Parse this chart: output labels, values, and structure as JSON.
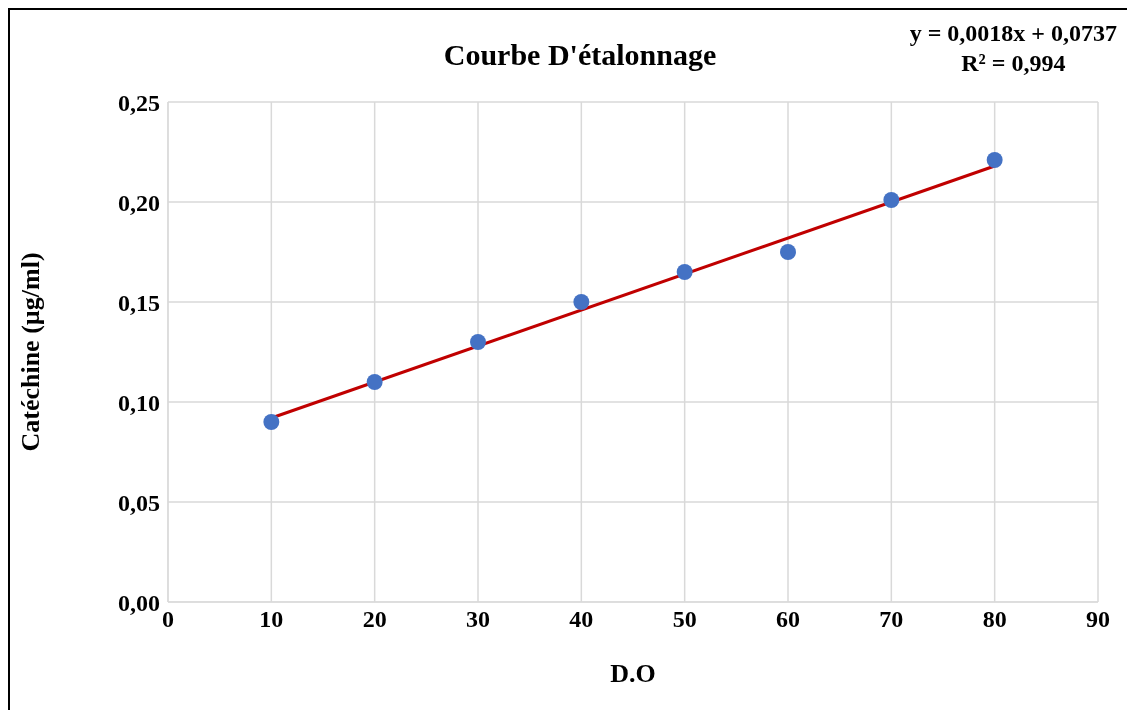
{
  "chart_data": {
    "type": "scatter",
    "title": "Courbe D'étalonnage",
    "xlabel": "D.O",
    "ylabel": "Catéchine (µg/ml)",
    "annotations": [
      "y = 0,0018x + 0,0737",
      "R² = 0,994"
    ],
    "xlim": [
      0,
      90
    ],
    "xticks": [
      0,
      10,
      20,
      30,
      40,
      50,
      60,
      70,
      80,
      90
    ],
    "ylim": [
      0,
      0.25
    ],
    "yticks": [
      {
        "value": 0,
        "label": "0,00"
      },
      {
        "value": 0.05,
        "label": "0,05"
      },
      {
        "value": 0.1,
        "label": "0,10"
      },
      {
        "value": 0.15,
        "label": "0,15"
      },
      {
        "value": 0.2,
        "label": "0,20"
      },
      {
        "value": 0.25,
        "label": "0,25"
      }
    ],
    "grid": true,
    "line_style": "solid",
    "series": [
      {
        "marker": "circle",
        "color": "#4472c4",
        "x": [
          10,
          20,
          30,
          40,
          50,
          60,
          70,
          80
        ],
        "values": [
          0.09,
          0.11,
          0.13,
          0.15,
          0.165,
          0.175,
          0.201,
          0.221
        ]
      },
      {
        "type": "line",
        "marker": "none",
        "color": "#c00000",
        "x": [
          10,
          80
        ],
        "values": [
          0.092,
          0.218
        ]
      }
    ]
  }
}
